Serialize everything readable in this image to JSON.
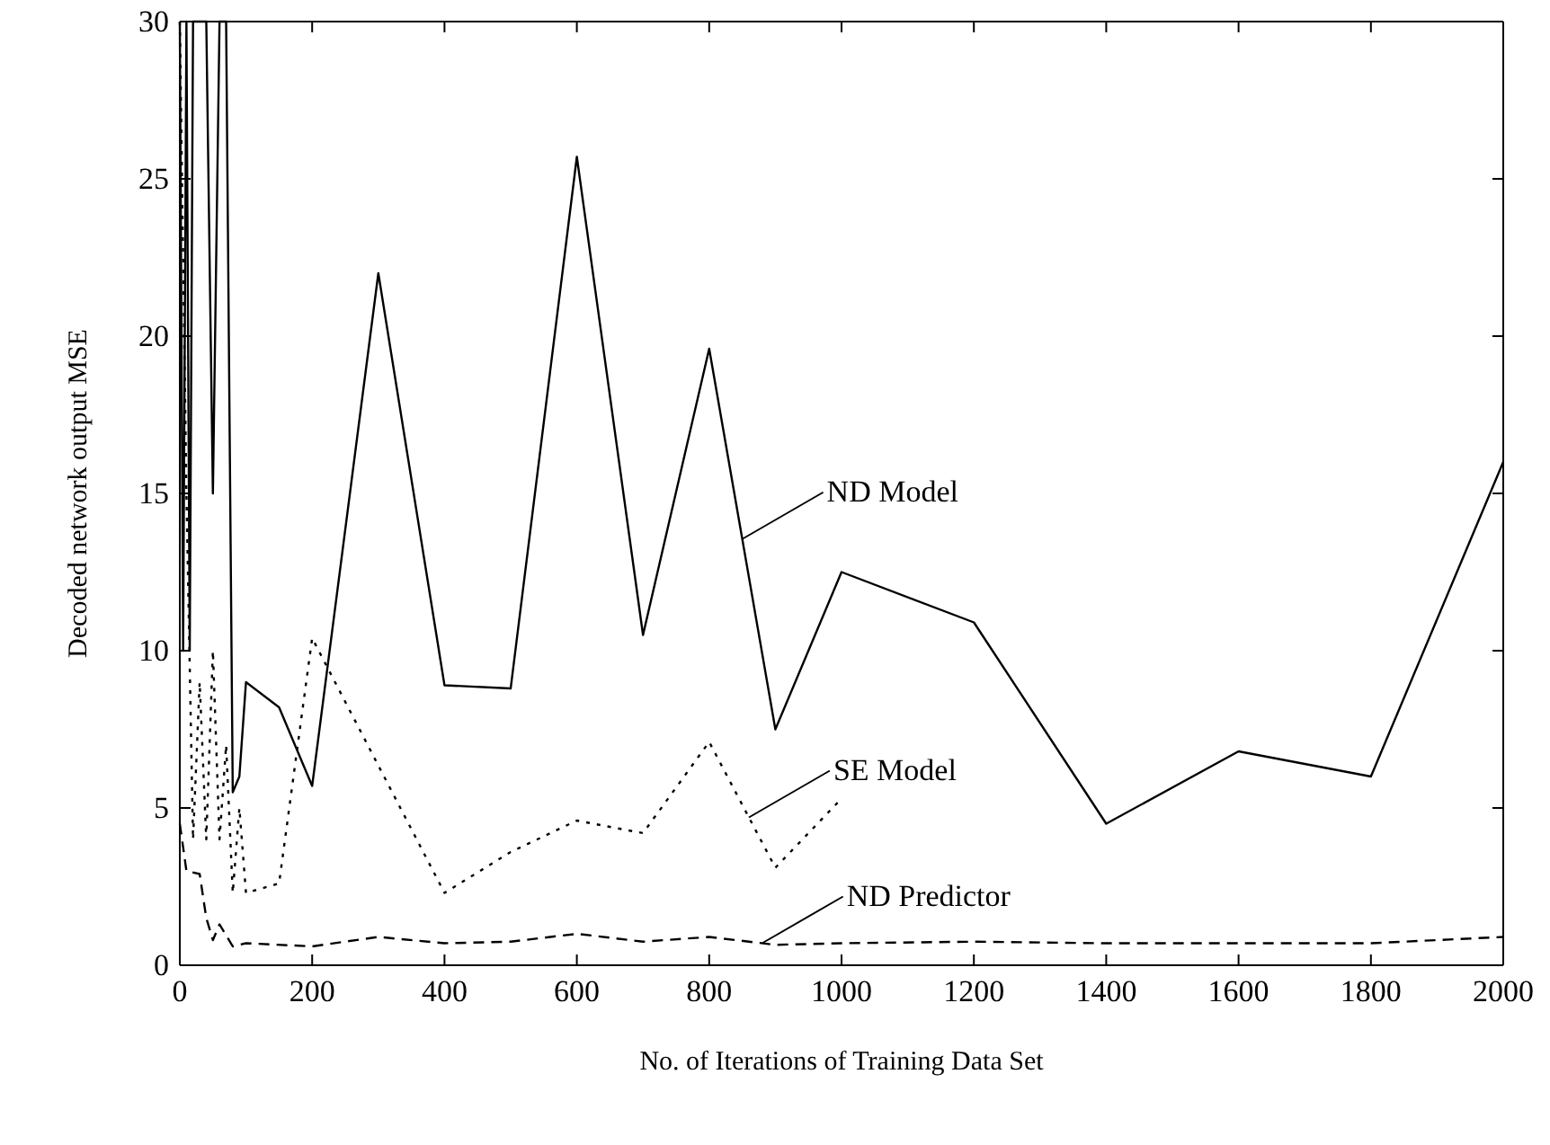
{
  "chart_data": {
    "type": "line",
    "xlabel": "No. of Iterations of Training Data Set",
    "ylabel": "Decoded network output MSE",
    "xlim": [
      0,
      2000
    ],
    "ylim": [
      0,
      30
    ],
    "xticks": [
      0,
      200,
      400,
      600,
      800,
      1000,
      1200,
      1400,
      1600,
      1800,
      2000
    ],
    "yticks": [
      0,
      5,
      10,
      15,
      20,
      25,
      30
    ],
    "grid": false,
    "series": [
      {
        "color": "#000000",
        "line_style": "solid",
        "x": [
          0,
          5,
          10,
          15,
          20,
          30,
          40,
          50,
          60,
          70,
          80,
          90,
          100,
          150,
          200,
          300,
          400,
          500,
          600,
          700,
          800,
          900,
          1000,
          1200,
          1400,
          1600,
          1800,
          2000
        ],
        "values": [
          30,
          10,
          30,
          10,
          30,
          30,
          30,
          15,
          30,
          30,
          5.5,
          6,
          9,
          8.2,
          5.7,
          22,
          8.9,
          8.8,
          25.7,
          10.5,
          19.6,
          7.5,
          12.5,
          10.9,
          4.5,
          6.8,
          6,
          16
        ]
      },
      {
        "color": "#000000",
        "line_style": "dotted",
        "x": [
          0,
          10,
          20,
          30,
          40,
          50,
          60,
          70,
          80,
          90,
          100,
          150,
          200,
          400,
          500,
          600,
          700,
          800,
          900,
          1000
        ],
        "values": [
          30,
          15,
          4,
          9,
          4,
          10,
          4,
          7,
          2.3,
          5,
          2.3,
          2.6,
          10.4,
          2.3,
          3.6,
          4.6,
          4.2,
          7.1,
          3.1,
          5.3
        ]
      },
      {
        "color": "#000000",
        "line_style": "dashed",
        "x": [
          0,
          10,
          30,
          40,
          50,
          60,
          80,
          100,
          200,
          300,
          400,
          500,
          600,
          700,
          800,
          900,
          1000,
          1200,
          1400,
          1600,
          1800,
          1900,
          2000
        ],
        "values": [
          4.5,
          3,
          2.9,
          1.5,
          0.8,
          1.3,
          0.6,
          0.7,
          0.6,
          0.9,
          0.7,
          0.75,
          1,
          0.75,
          0.9,
          0.65,
          0.7,
          0.75,
          0.7,
          0.7,
          0.7,
          0.8,
          0.9
        ]
      }
    ],
    "annotations": [
      {
        "text": "ND Model",
        "x": 850,
        "y": 13.55
      },
      {
        "text": "SE Model",
        "x": 860,
        "y": 4.7
      },
      {
        "text": "ND Predictor",
        "x": 880,
        "y": 0.7
      }
    ]
  }
}
